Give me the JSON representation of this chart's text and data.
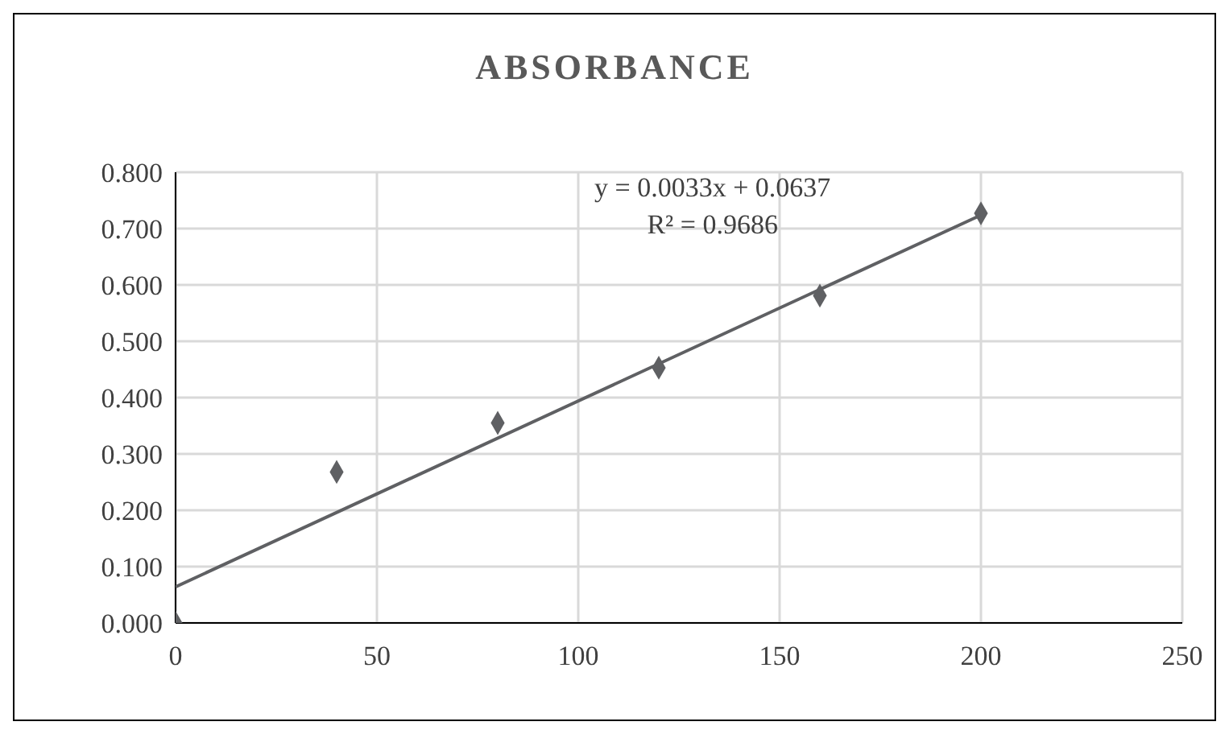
{
  "chart_data": {
    "type": "scatter",
    "title": "ABSORBANCE",
    "marker": "diamond",
    "grid": true,
    "legend": false,
    "series": [
      {
        "color": "#5f6063",
        "x": [
          0,
          40,
          80,
          120,
          160,
          200
        ],
        "values": [
          0.0,
          0.268,
          0.355,
          0.453,
          0.581,
          0.727
        ]
      },
      {
        "type": "line",
        "color": "#5f6063",
        "x": [
          0,
          200
        ],
        "values": [
          0.064,
          0.724
        ],
        "line_style": "solid",
        "marker": "none"
      }
    ],
    "xlim": [
      0,
      250
    ],
    "xticks": [
      0,
      50,
      100,
      150,
      200,
      250
    ],
    "ylim": [
      0,
      0.8
    ],
    "yticks": [
      {
        "value": 0,
        "label": "0.000"
      },
      {
        "value": 0.1,
        "label": "0.100"
      },
      {
        "value": 0.2,
        "label": "0.200"
      },
      {
        "value": 0.3,
        "label": "0.300"
      },
      {
        "value": 0.4,
        "label": "0.400"
      },
      {
        "value": 0.5,
        "label": "0.500"
      },
      {
        "value": 0.6,
        "label": "0.600"
      },
      {
        "value": 0.7,
        "label": "0.700"
      },
      {
        "value": 0.8,
        "label": "0.800"
      }
    ],
    "annotations": [
      "y = 0.0033x + 0.0637",
      "R² = 0.9686"
    ]
  }
}
